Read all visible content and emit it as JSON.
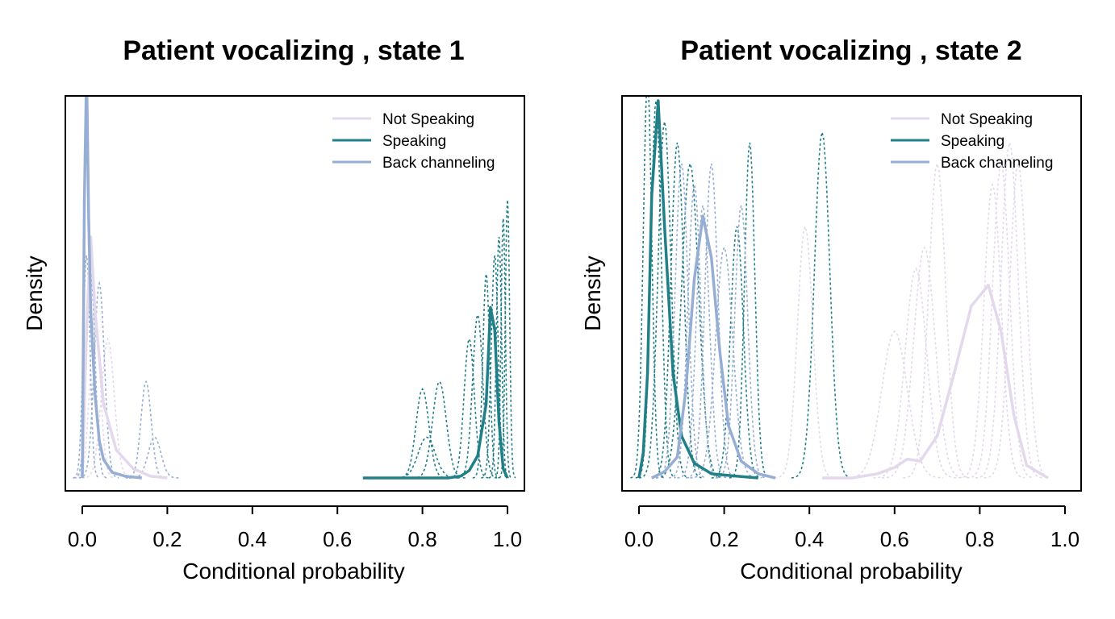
{
  "colors": {
    "not_speaking": "#e4d8ec",
    "speaking": "#217f87",
    "back_channeling": "#97aed4"
  },
  "chart_data": [
    {
      "type": "line",
      "title": "Patient vocalizing , state 1",
      "xlabel": "Conditional probability",
      "ylabel": "Density",
      "xlim": [
        0,
        1
      ],
      "x_ticks": [
        "0.0",
        "0.2",
        "0.4",
        "0.6",
        "0.8",
        "1.0"
      ],
      "y_ticks_shown": false,
      "legend": {
        "position": "top-right",
        "entries": [
          "Not Speaking",
          "Speaking",
          "Back channeling"
        ]
      },
      "series": [
        {
          "name": "Not Speaking",
          "style": "solid",
          "color_key": "not_speaking",
          "x": [
            0.0,
            0.01,
            0.02,
            0.03,
            0.05,
            0.08,
            0.12,
            0.16,
            0.2
          ],
          "y": [
            0.0,
            0.8,
            1.3,
            0.9,
            0.4,
            0.15,
            0.05,
            0.01,
            0.0
          ]
        },
        {
          "name": "Speaking",
          "style": "solid",
          "color_key": "speaking",
          "x": [
            0.66,
            0.7,
            0.8,
            0.86,
            0.89,
            0.91,
            0.93,
            0.95,
            0.96,
            0.97,
            0.98,
            0.99,
            1.0
          ],
          "y": [
            0.0,
            0.0,
            0.0,
            0.0,
            0.01,
            0.04,
            0.12,
            0.4,
            0.92,
            0.8,
            0.3,
            0.05,
            0.0
          ]
        },
        {
          "name": "Back channeling",
          "style": "solid",
          "color_key": "back_channeling",
          "x": [
            0.0,
            0.005,
            0.01,
            0.015,
            0.02,
            0.03,
            0.04,
            0.05,
            0.07,
            0.1,
            0.14
          ],
          "y": [
            0.0,
            1.5,
            2.2,
            1.4,
            0.9,
            0.45,
            0.2,
            0.1,
            0.03,
            0.01,
            0.0
          ]
        }
      ],
      "individual_series_dashed": [
        {
          "color_key": "not_speaking",
          "center": 0.06,
          "sd": 0.015,
          "height": 0.75
        },
        {
          "color_key": "not_speaking",
          "center": 0.03,
          "sd": 0.012,
          "height": 0.9
        },
        {
          "color_key": "back_channeling",
          "center": 0.15,
          "sd": 0.012,
          "height": 0.52
        },
        {
          "color_key": "back_channeling",
          "center": 0.17,
          "sd": 0.015,
          "height": 0.22
        },
        {
          "color_key": "back_channeling",
          "center": 0.01,
          "sd": 0.008,
          "height": 1.2
        },
        {
          "color_key": "back_channeling",
          "center": 0.02,
          "sd": 0.01,
          "height": 1.1
        },
        {
          "color_key": "back_channeling",
          "center": 0.04,
          "sd": 0.012,
          "height": 1.05
        },
        {
          "color_key": "speaking",
          "center": 0.8,
          "sd": 0.015,
          "height": 0.48
        },
        {
          "color_key": "speaking",
          "center": 0.84,
          "sd": 0.016,
          "height": 0.52
        },
        {
          "color_key": "speaking",
          "center": 0.81,
          "sd": 0.02,
          "height": 0.22
        },
        {
          "color_key": "speaking",
          "center": 0.91,
          "sd": 0.012,
          "height": 0.75
        },
        {
          "color_key": "speaking",
          "center": 0.93,
          "sd": 0.012,
          "height": 0.88
        },
        {
          "color_key": "speaking",
          "center": 0.95,
          "sd": 0.008,
          "height": 1.1
        },
        {
          "color_key": "speaking",
          "center": 0.97,
          "sd": 0.008,
          "height": 1.2
        },
        {
          "color_key": "speaking",
          "center": 0.98,
          "sd": 0.006,
          "height": 1.3
        },
        {
          "color_key": "speaking",
          "center": 0.99,
          "sd": 0.005,
          "height": 1.4
        },
        {
          "color_key": "speaking",
          "center": 1.0,
          "sd": 0.005,
          "height": 1.5
        }
      ]
    },
    {
      "type": "line",
      "title": "Patient vocalizing , state 2",
      "xlabel": "Conditional probability",
      "ylabel": "Density",
      "xlim": [
        0,
        1
      ],
      "x_ticks": [
        "0.0",
        "0.2",
        "0.4",
        "0.6",
        "0.8",
        "1.0"
      ],
      "y_ticks_shown": false,
      "legend": {
        "position": "top-right",
        "entries": [
          "Not Speaking",
          "Speaking",
          "Back channeling"
        ]
      },
      "series": [
        {
          "name": "Not Speaking",
          "style": "solid",
          "color_key": "not_speaking",
          "x": [
            0.43,
            0.5,
            0.56,
            0.6,
            0.63,
            0.66,
            0.7,
            0.74,
            0.78,
            0.82,
            0.85,
            0.88,
            0.91,
            0.96
          ],
          "y": [
            0.0,
            0.0,
            0.02,
            0.05,
            0.09,
            0.08,
            0.2,
            0.5,
            0.82,
            0.92,
            0.7,
            0.3,
            0.06,
            0.0
          ]
        },
        {
          "name": "Speaking",
          "style": "solid",
          "color_key": "speaking",
          "x": [
            0.0,
            0.01,
            0.02,
            0.03,
            0.045,
            0.06,
            0.08,
            0.1,
            0.13,
            0.17,
            0.22,
            0.28
          ],
          "y": [
            0.0,
            0.12,
            0.5,
            1.35,
            1.8,
            1.2,
            0.5,
            0.2,
            0.07,
            0.02,
            0.01,
            0.0
          ]
        },
        {
          "name": "Back channeling",
          "style": "solid",
          "color_key": "back_channeling",
          "x": [
            0.03,
            0.06,
            0.09,
            0.11,
            0.13,
            0.15,
            0.17,
            0.19,
            0.21,
            0.24,
            0.28,
            0.32
          ],
          "y": [
            0.0,
            0.03,
            0.1,
            0.42,
            0.95,
            1.25,
            1.05,
            0.6,
            0.25,
            0.08,
            0.02,
            0.0
          ]
        }
      ],
      "individual_series_dashed": [
        {
          "color_key": "speaking",
          "center": 0.02,
          "sd": 0.01,
          "height": 1.9
        },
        {
          "color_key": "speaking",
          "center": 0.04,
          "sd": 0.012,
          "height": 1.8
        },
        {
          "color_key": "speaking",
          "center": 0.06,
          "sd": 0.015,
          "height": 1.7
        },
        {
          "color_key": "speaking",
          "center": 0.09,
          "sd": 0.015,
          "height": 1.6
        },
        {
          "color_key": "speaking",
          "center": 0.12,
          "sd": 0.02,
          "height": 1.5
        },
        {
          "color_key": "speaking",
          "center": 0.23,
          "sd": 0.015,
          "height": 1.2
        },
        {
          "color_key": "speaking",
          "center": 0.26,
          "sd": 0.012,
          "height": 1.6
        },
        {
          "color_key": "speaking",
          "center": 0.43,
          "sd": 0.018,
          "height": 1.65
        },
        {
          "color_key": "back_channeling",
          "center": 0.1,
          "sd": 0.015,
          "height": 1.5
        },
        {
          "color_key": "back_channeling",
          "center": 0.13,
          "sd": 0.015,
          "height": 1.4
        },
        {
          "color_key": "back_channeling",
          "center": 0.15,
          "sd": 0.015,
          "height": 1.3
        },
        {
          "color_key": "back_channeling",
          "center": 0.17,
          "sd": 0.015,
          "height": 1.5
        },
        {
          "color_key": "back_channeling",
          "center": 0.2,
          "sd": 0.02,
          "height": 1.1
        },
        {
          "color_key": "back_channeling",
          "center": 0.24,
          "sd": 0.015,
          "height": 1.3
        },
        {
          "color_key": "not_speaking",
          "center": 0.39,
          "sd": 0.018,
          "height": 1.2
        },
        {
          "color_key": "not_speaking",
          "center": 0.6,
          "sd": 0.03,
          "height": 0.7
        },
        {
          "color_key": "not_speaking",
          "center": 0.65,
          "sd": 0.025,
          "height": 1.0
        },
        {
          "color_key": "not_speaking",
          "center": 0.67,
          "sd": 0.025,
          "height": 1.1
        },
        {
          "color_key": "not_speaking",
          "center": 0.7,
          "sd": 0.02,
          "height": 1.5
        },
        {
          "color_key": "not_speaking",
          "center": 0.83,
          "sd": 0.02,
          "height": 1.4
        },
        {
          "color_key": "not_speaking",
          "center": 0.85,
          "sd": 0.02,
          "height": 1.5
        },
        {
          "color_key": "not_speaking",
          "center": 0.87,
          "sd": 0.02,
          "height": 1.6
        },
        {
          "color_key": "not_speaking",
          "center": 0.89,
          "sd": 0.02,
          "height": 1.5
        }
      ]
    }
  ]
}
